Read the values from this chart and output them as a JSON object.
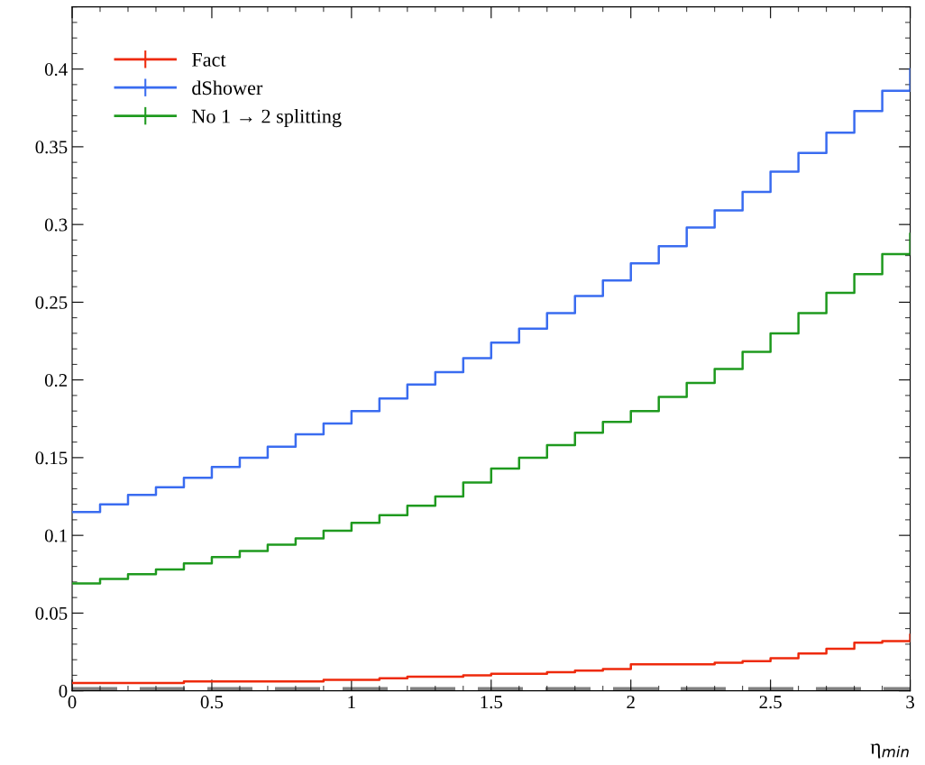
{
  "chart_data": {
    "type": "step",
    "xlabel": "η$_{min}$",
    "x": [
      0,
      0.1,
      0.2,
      0.3,
      0.4,
      0.5,
      0.6,
      0.7,
      0.8,
      0.9,
      1.0,
      1.1,
      1.2,
      1.3,
      1.4,
      1.5,
      1.6,
      1.7,
      1.8,
      1.9,
      2.0,
      2.1,
      2.2,
      2.3,
      2.4,
      2.5,
      2.6,
      2.7,
      2.8,
      2.9,
      3.0
    ],
    "series": [
      {
        "name": "Fact",
        "color": "#ee2a0c",
        "values": [
          0.005,
          0.005,
          0.005,
          0.005,
          0.006,
          0.006,
          0.006,
          0.006,
          0.006,
          0.007,
          0.007,
          0.008,
          0.009,
          0.009,
          0.01,
          0.011,
          0.011,
          0.012,
          0.013,
          0.014,
          0.017,
          0.017,
          0.017,
          0.018,
          0.019,
          0.021,
          0.024,
          0.027,
          0.031,
          0.032,
          0.036
        ]
      },
      {
        "name": "dShower",
        "color": "#3a6cf0",
        "values": [
          0.115,
          0.12,
          0.126,
          0.131,
          0.137,
          0.144,
          0.15,
          0.157,
          0.165,
          0.172,
          0.18,
          0.188,
          0.197,
          0.205,
          0.214,
          0.224,
          0.233,
          0.243,
          0.254,
          0.264,
          0.275,
          0.286,
          0.298,
          0.309,
          0.321,
          0.334,
          0.346,
          0.359,
          0.373,
          0.386,
          0.4
        ]
      },
      {
        "name": "No 1 → 2 splitting",
        "color": "#1f9a1f",
        "values": [
          0.069,
          0.072,
          0.075,
          0.078,
          0.082,
          0.086,
          0.09,
          0.094,
          0.098,
          0.103,
          0.108,
          0.113,
          0.119,
          0.125,
          0.134,
          0.143,
          0.15,
          0.158,
          0.166,
          0.173,
          0.18,
          0.189,
          0.198,
          0.207,
          0.218,
          0.23,
          0.243,
          0.256,
          0.268,
          0.281,
          0.294
        ]
      }
    ],
    "xlim": [
      0,
      3
    ],
    "ylim": [
      0,
      0.44
    ],
    "xticks": [
      0,
      0.5,
      1,
      1.5,
      2,
      2.5,
      3
    ],
    "yticks": [
      0,
      0.05,
      0.1,
      0.15,
      0.2,
      0.25,
      0.3,
      0.35,
      0.4
    ],
    "ref_lines": [
      {
        "axis": "y",
        "value": 0,
        "color": "#808080",
        "line_style": "dashed"
      }
    ],
    "legend": "top left",
    "grid": false
  }
}
